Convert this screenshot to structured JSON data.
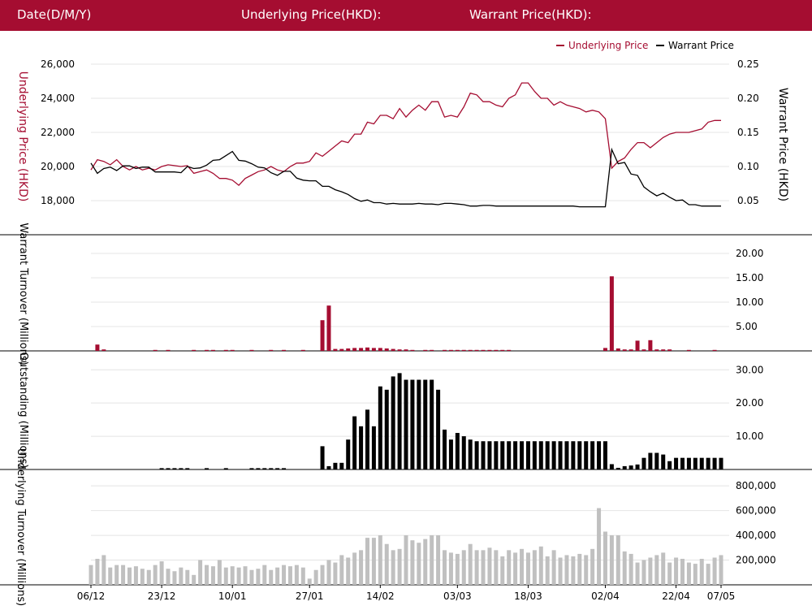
{
  "header": {
    "date_label": "Date(D/M/Y)",
    "underlying_label": "Underlying Price(HKD):",
    "warrant_label": "Warrant Price(HKD):"
  },
  "colors": {
    "header_bg": "#a50d31",
    "underlying": "#a50d31",
    "warrant": "#000000",
    "turnover": "#a50d31",
    "outstanding": "#000000",
    "underlying_turnover": "#c0c0c0"
  },
  "chart_data": [
    {
      "type": "line",
      "legend": [
        "Underlying Price",
        "Warrant Price"
      ],
      "ylabel_left": "Underlying Price (HKD)",
      "ylabel_right": "Warrant  Price (HKD)",
      "left_ticks": [
        "26,000",
        "24,000",
        "22,000",
        "20,000",
        "18,000"
      ],
      "right_ticks": [
        "0.25",
        "0.20",
        "0.15",
        "0.10",
        "0.05"
      ],
      "ylim_left": [
        16000,
        26000
      ],
      "ylim_right": [
        0.0,
        0.25
      ],
      "series": [
        {
          "name": "Underlying Price",
          "values": [
            19800,
            20400,
            20300,
            20100,
            20400,
            20000,
            19800,
            20000,
            19800,
            19900,
            19800,
            20000,
            20100,
            20050,
            20000,
            20050,
            19600,
            19700,
            19800,
            19600,
            19300,
            19300,
            19200,
            18900,
            19300,
            19500,
            19700,
            19800,
            20000,
            19800,
            19700,
            20000,
            20200,
            20200,
            20300,
            20800,
            20600,
            20900,
            21200,
            21500,
            21400,
            21900,
            21900,
            22600,
            22500,
            23000,
            23000,
            22800,
            23400,
            22900,
            23300,
            23600,
            23300,
            23800,
            23800,
            22900,
            23000,
            22900,
            23500,
            24300,
            24200,
            23800,
            23800,
            23600,
            23500,
            24000,
            24200,
            24900,
            24900,
            24400,
            24000,
            24000,
            23600,
            23800,
            23600,
            23500,
            23400,
            23200,
            23300,
            23200,
            22800,
            19900,
            20300,
            20500,
            21000,
            21400,
            21400,
            21100,
            21400,
            21700,
            21900,
            22000,
            22000,
            22000,
            22100,
            22200,
            22600,
            22700,
            22700
          ]
        },
        {
          "name": "Warrant Price",
          "values": [
            0.105,
            0.09,
            0.097,
            0.099,
            0.094,
            0.101,
            0.101,
            0.097,
            0.099,
            0.099,
            0.092,
            0.092,
            0.092,
            0.092,
            0.091,
            0.1,
            0.097,
            0.098,
            0.102,
            0.109,
            0.11,
            0.116,
            0.122,
            0.109,
            0.108,
            0.104,
            0.099,
            0.098,
            0.091,
            0.087,
            0.093,
            0.093,
            0.083,
            0.08,
            0.079,
            0.079,
            0.071,
            0.071,
            0.066,
            0.063,
            0.059,
            0.053,
            0.049,
            0.051,
            0.047,
            0.047,
            0.045,
            0.046,
            0.045,
            0.045,
            0.045,
            0.046,
            0.045,
            0.045,
            0.044,
            0.046,
            0.046,
            0.045,
            0.044,
            0.042,
            0.042,
            0.043,
            0.043,
            0.042,
            0.042,
            0.042,
            0.042,
            0.042,
            0.042,
            0.042,
            0.042,
            0.042,
            0.042,
            0.042,
            0.042,
            0.042,
            0.041,
            0.041,
            0.041,
            0.041,
            0.041,
            0.125,
            0.104,
            0.106,
            0.089,
            0.087,
            0.07,
            0.063,
            0.057,
            0.061,
            0.055,
            0.05,
            0.051,
            0.044,
            0.044,
            0.042,
            0.042,
            0.042,
            0.042
          ]
        }
      ]
    },
    {
      "type": "bar",
      "ylabel": "Warrant  Turnover (Millions)",
      "ticks": [
        "20.00",
        "15.00",
        "10.00",
        "5.00"
      ],
      "ylim": [
        0,
        22
      ],
      "values": [
        0,
        1.3,
        0.3,
        0,
        0,
        0,
        0,
        0,
        0,
        0,
        0.2,
        0,
        0.2,
        0,
        0,
        0,
        0.2,
        0,
        0.2,
        0.2,
        0,
        0.2,
        0.2,
        0,
        0,
        0.2,
        0,
        0,
        0.2,
        0,
        0.2,
        0,
        0,
        0.2,
        0,
        0,
        6.3,
        9.3,
        0.4,
        0.4,
        0.5,
        0.6,
        0.6,
        0.7,
        0.6,
        0.6,
        0.5,
        0.4,
        0.3,
        0.3,
        0.2,
        0,
        0.2,
        0.2,
        0,
        0.2,
        0.2,
        0.2,
        0.2,
        0.2,
        0.2,
        0.2,
        0.2,
        0.2,
        0.2,
        0.2,
        0,
        0,
        0,
        0,
        0,
        0,
        0,
        0,
        0,
        0,
        0,
        0,
        0,
        0,
        0.6,
        15.3,
        0.5,
        0.3,
        0.3,
        2.1,
        0.3,
        2.2,
        0.3,
        0.3,
        0.3,
        0,
        0,
        0.2,
        0,
        0,
        0,
        0.2,
        0
      ]
    },
    {
      "type": "bar",
      "ylabel": "Outstanding (Millions)",
      "ticks": [
        "30.00",
        "20.00",
        "10.00"
      ],
      "ylim": [
        0,
        33
      ],
      "values": [
        0,
        0,
        0,
        0,
        0,
        0,
        0,
        0,
        0,
        0,
        0,
        0.4,
        0.4,
        0.4,
        0.4,
        0.4,
        0,
        0,
        0.4,
        0,
        0,
        0.4,
        0,
        0,
        0,
        0.4,
        0.4,
        0.4,
        0.4,
        0.4,
        0.4,
        0,
        0,
        0,
        0,
        0,
        7,
        1,
        2,
        2,
        9,
        16,
        13,
        18,
        13,
        25,
        24,
        28,
        29,
        27,
        27,
        27,
        27,
        27,
        24,
        12,
        9,
        11,
        10,
        9,
        8.5,
        8.5,
        8.5,
        8.5,
        8.5,
        8.5,
        8.5,
        8.5,
        8.5,
        8.5,
        8.5,
        8.5,
        8.5,
        8.5,
        8.5,
        8.5,
        8.5,
        8.5,
        8.5,
        8.5,
        8.5,
        1.6,
        0.5,
        1,
        1.2,
        1.5,
        3.5,
        5,
        5,
        4.5,
        2.5,
        3.5,
        3.5,
        3.5,
        3.5,
        3.5,
        3.5,
        3.5,
        3.5
      ]
    },
    {
      "type": "bar",
      "ylabel": "Underlying Turnover (Millions)",
      "ticks": [
        "800,000",
        "600,000",
        "400,000",
        "200,000"
      ],
      "ylim": [
        0,
        860000
      ],
      "values": [
        160000,
        210000,
        240000,
        140000,
        160000,
        160000,
        140000,
        150000,
        130000,
        120000,
        160000,
        190000,
        130000,
        110000,
        140000,
        120000,
        80000,
        200000,
        160000,
        150000,
        200000,
        140000,
        150000,
        140000,
        150000,
        120000,
        130000,
        160000,
        120000,
        140000,
        160000,
        150000,
        160000,
        140000,
        50000,
        120000,
        160000,
        200000,
        180000,
        240000,
        220000,
        260000,
        280000,
        380000,
        380000,
        400000,
        330000,
        280000,
        290000,
        400000,
        360000,
        340000,
        370000,
        400000,
        400000,
        280000,
        260000,
        250000,
        280000,
        330000,
        280000,
        280000,
        300000,
        280000,
        230000,
        280000,
        260000,
        290000,
        260000,
        280000,
        310000,
        230000,
        280000,
        220000,
        240000,
        230000,
        250000,
        240000,
        290000,
        620000,
        430000,
        400000,
        400000,
        270000,
        250000,
        180000,
        200000,
        220000,
        240000,
        260000,
        180000,
        220000,
        210000,
        180000,
        170000,
        210000,
        170000,
        220000,
        240000
      ]
    }
  ],
  "x_ticks": [
    "06/12",
    "23/12",
    "10/01",
    "27/01",
    "14/02",
    "03/03",
    "18/03",
    "02/04",
    "22/04",
    "07/05"
  ]
}
